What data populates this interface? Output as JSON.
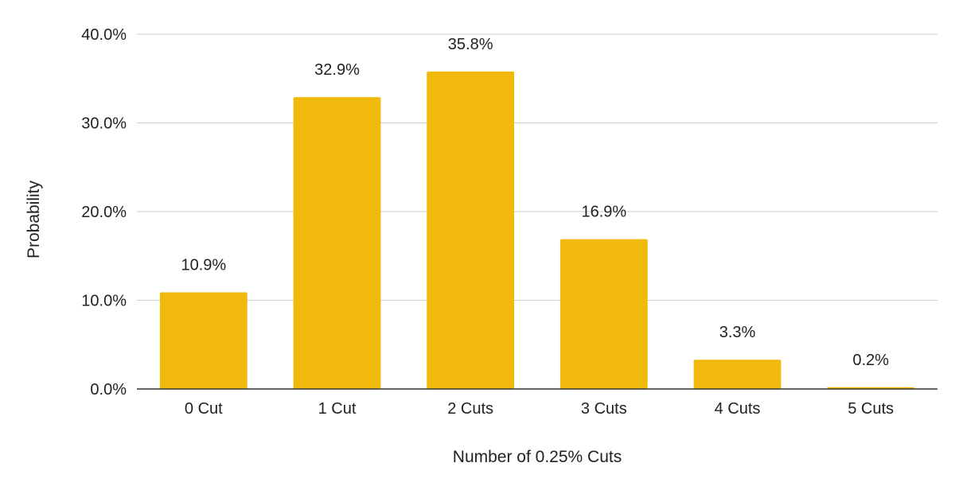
{
  "chart_data": {
    "type": "bar",
    "title": "",
    "xlabel": "Number of 0.25% Cuts",
    "ylabel": "Probability",
    "categories": [
      "0 Cut",
      "1 Cut",
      "2 Cuts",
      "3 Cuts",
      "4 Cuts",
      "5 Cuts"
    ],
    "values": [
      10.9,
      32.9,
      35.8,
      16.9,
      3.3,
      0.2
    ],
    "data_labels": [
      "10.9%",
      "32.9%",
      "35.8%",
      "16.9%",
      "3.3%",
      "0.2%"
    ],
    "ylim": [
      0,
      40
    ],
    "yticks": [
      0,
      10,
      20,
      30,
      40
    ],
    "ytick_labels": [
      "0.0%",
      "10.0%",
      "20.0%",
      "30.0%",
      "40.0%"
    ],
    "grid": true,
    "legend": "none",
    "colors": {
      "bar": "#F1B90C",
      "grid": "#CCCCCC",
      "axis": "#333333"
    }
  }
}
